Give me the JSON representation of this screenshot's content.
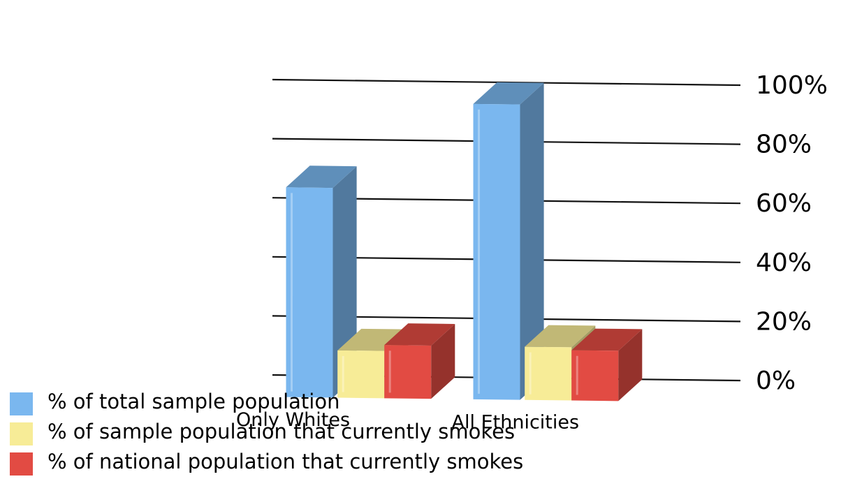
{
  "chart_data": {
    "type": "bar",
    "title": "",
    "categories": [
      "Only Whites",
      "All Ethnicities"
    ],
    "series": [
      {
        "name": "% of total sample population",
        "values": [
          71,
          100
        ],
        "color": "#7ab7ef"
      },
      {
        "name": "% of sample population that currently smokes",
        "values": [
          16,
          18
        ],
        "color": "#f7ec97"
      },
      {
        "name": "% of national population that currently smokes",
        "values": [
          18,
          17
        ],
        "color": "#e24b43"
      }
    ],
    "yticks": [
      "0%",
      "20%",
      "40%",
      "60%",
      "80%",
      "100%"
    ],
    "ylim": [
      0,
      100
    ],
    "grid": true,
    "legend_position": "bottom-left"
  }
}
